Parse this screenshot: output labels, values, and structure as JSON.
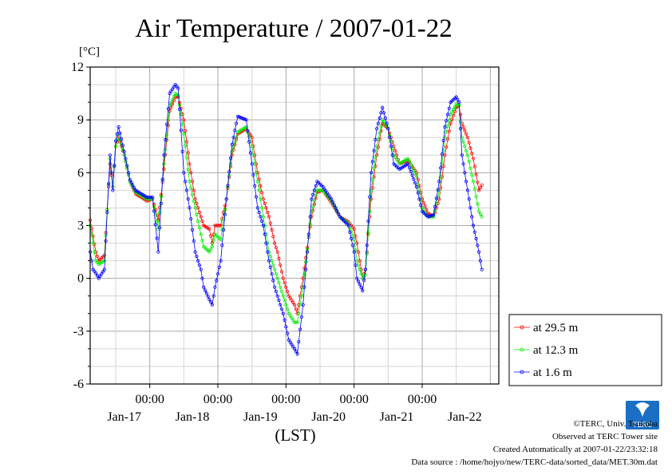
{
  "chart_data": {
    "type": "line",
    "title": "Air Temperature / 2007-01-22",
    "ylabel": "[°C]",
    "xlabel": "(LST)",
    "ylim": [
      -6,
      12
    ],
    "xlim": [
      0,
      144
    ],
    "y_ticks": [
      12,
      9,
      6,
      3,
      0,
      -3,
      -6
    ],
    "x_time_ticks": [
      {
        "x": 21,
        "label": "00:00"
      },
      {
        "x": 45,
        "label": "00:00"
      },
      {
        "x": 69,
        "label": "00:00"
      },
      {
        "x": 93,
        "label": "00:00"
      },
      {
        "x": 117,
        "label": "00:00"
      }
    ],
    "x_date_ticks": [
      {
        "x": 12,
        "label": "Jan-17"
      },
      {
        "x": 36,
        "label": "Jan-18"
      },
      {
        "x": 60,
        "label": "Jan-19"
      },
      {
        "x": 84,
        "label": "Jan-20"
      },
      {
        "x": 108,
        "label": "Jan-21"
      },
      {
        "x": 132,
        "label": "Jan-22"
      }
    ],
    "grid": true,
    "legend_position": "right-bottom",
    "series": [
      {
        "name": "at 29.5 m",
        "color": "#ff0000",
        "points": [
          [
            0,
            3.3
          ],
          [
            2,
            1.5
          ],
          [
            3,
            1.0
          ],
          [
            5,
            1.3
          ],
          [
            7,
            6.5
          ],
          [
            8,
            5.2
          ],
          [
            9,
            7.5
          ],
          [
            10,
            8.0
          ],
          [
            12,
            7.0
          ],
          [
            14,
            5.5
          ],
          [
            16,
            4.8
          ],
          [
            20,
            4.4
          ],
          [
            22,
            4.5
          ],
          [
            24,
            3.3
          ],
          [
            26,
            6.2
          ],
          [
            28,
            9.5
          ],
          [
            30,
            10.3
          ],
          [
            31,
            10.3
          ],
          [
            33,
            9.0
          ],
          [
            35,
            6.5
          ],
          [
            37,
            4.5
          ],
          [
            39,
            3.5
          ],
          [
            40,
            3.0
          ],
          [
            42,
            2.8
          ],
          [
            43,
            2.0
          ],
          [
            44,
            3.0
          ],
          [
            46,
            3.0
          ],
          [
            48,
            4.5
          ],
          [
            50,
            7.0
          ],
          [
            52,
            8.2
          ],
          [
            55,
            8.5
          ],
          [
            57,
            8.0
          ],
          [
            59,
            6.0
          ],
          [
            61,
            4.5
          ],
          [
            63,
            3.5
          ],
          [
            65,
            2.0
          ],
          [
            66,
            1.5
          ],
          [
            68,
            0.0
          ],
          [
            70,
            -1.0
          ],
          [
            72,
            -1.5
          ],
          [
            73,
            -2.0
          ],
          [
            75,
            0.0
          ],
          [
            78,
            3.5
          ],
          [
            80,
            4.9
          ],
          [
            82,
            5.0
          ],
          [
            85,
            4.3
          ],
          [
            88,
            3.5
          ],
          [
            91,
            3.2
          ],
          [
            93,
            2.8
          ],
          [
            94,
            2.0
          ],
          [
            96,
            0.0
          ],
          [
            97,
            0.5
          ],
          [
            99,
            4.5
          ],
          [
            101,
            7.0
          ],
          [
            103,
            8.8
          ],
          [
            105,
            8.5
          ],
          [
            107,
            7.5
          ],
          [
            109,
            6.5
          ],
          [
            112,
            6.7
          ],
          [
            115,
            6.0
          ],
          [
            117,
            4.5
          ],
          [
            119,
            3.7
          ],
          [
            121,
            3.5
          ],
          [
            123,
            4.5
          ],
          [
            125,
            7.0
          ],
          [
            127,
            8.8
          ],
          [
            129,
            9.7
          ],
          [
            130,
            9.8
          ],
          [
            131,
            8.8
          ],
          [
            133,
            8.0
          ],
          [
            135,
            6.8
          ],
          [
            137,
            5.0
          ],
          [
            138,
            5.3
          ]
        ]
      },
      {
        "name": "at 12.3 m",
        "color": "#00ee00",
        "points": [
          [
            0,
            3.0
          ],
          [
            2,
            1.0
          ],
          [
            3,
            0.8
          ],
          [
            5,
            1.0
          ],
          [
            7,
            6.8
          ],
          [
            8,
            5.2
          ],
          [
            9,
            7.5
          ],
          [
            10,
            8.2
          ],
          [
            12,
            7.0
          ],
          [
            14,
            5.5
          ],
          [
            16,
            4.9
          ],
          [
            20,
            4.5
          ],
          [
            22,
            4.5
          ],
          [
            24,
            2.8
          ],
          [
            26,
            6.5
          ],
          [
            28,
            9.8
          ],
          [
            30,
            10.5
          ],
          [
            31,
            10.4
          ],
          [
            33,
            8.2
          ],
          [
            35,
            5.5
          ],
          [
            37,
            4.0
          ],
          [
            39,
            2.5
          ],
          [
            40,
            1.8
          ],
          [
            42,
            1.5
          ],
          [
            43,
            1.8
          ],
          [
            44,
            2.5
          ],
          [
            46,
            2.2
          ],
          [
            48,
            4.5
          ],
          [
            50,
            7.2
          ],
          [
            52,
            8.3
          ],
          [
            55,
            8.6
          ],
          [
            57,
            7.5
          ],
          [
            59,
            5.5
          ],
          [
            61,
            3.5
          ],
          [
            63,
            1.5
          ],
          [
            65,
            0.5
          ],
          [
            66,
            0.0
          ],
          [
            68,
            -1.0
          ],
          [
            70,
            -2.0
          ],
          [
            72,
            -2.5
          ],
          [
            73,
            -2.5
          ],
          [
            75,
            -0.5
          ],
          [
            78,
            3.8
          ],
          [
            80,
            5.0
          ],
          [
            82,
            5.0
          ],
          [
            85,
            4.4
          ],
          [
            88,
            3.5
          ],
          [
            91,
            3.1
          ],
          [
            93,
            2.2
          ],
          [
            94,
            1.0
          ],
          [
            96,
            0.0
          ],
          [
            97,
            0.2
          ],
          [
            99,
            5.0
          ],
          [
            101,
            7.5
          ],
          [
            103,
            9.0
          ],
          [
            105,
            8.5
          ],
          [
            107,
            7.0
          ],
          [
            109,
            6.5
          ],
          [
            112,
            6.8
          ],
          [
            115,
            5.8
          ],
          [
            117,
            4.0
          ],
          [
            119,
            3.5
          ],
          [
            121,
            3.5
          ],
          [
            123,
            5.0
          ],
          [
            125,
            8.0
          ],
          [
            127,
            9.3
          ],
          [
            129,
            9.9
          ],
          [
            130,
            9.8
          ],
          [
            131,
            8.0
          ],
          [
            133,
            7.0
          ],
          [
            135,
            5.5
          ],
          [
            137,
            3.8
          ],
          [
            138,
            3.5
          ]
        ]
      },
      {
        "name": "at 1.6 m",
        "color": "#0000ff",
        "points": [
          [
            0,
            1.5
          ],
          [
            1,
            0.5
          ],
          [
            2,
            0.3
          ],
          [
            3,
            0.0
          ],
          [
            5,
            0.5
          ],
          [
            7,
            7.0
          ],
          [
            8,
            5.0
          ],
          [
            9,
            7.8
          ],
          [
            10,
            8.6
          ],
          [
            12,
            7.2
          ],
          [
            14,
            5.6
          ],
          [
            16,
            5.0
          ],
          [
            20,
            4.6
          ],
          [
            22,
            4.6
          ],
          [
            24,
            1.5
          ],
          [
            26,
            7.0
          ],
          [
            28,
            10.5
          ],
          [
            30,
            11.0
          ],
          [
            31,
            10.8
          ],
          [
            33,
            6.0
          ],
          [
            35,
            4.0
          ],
          [
            37,
            1.5
          ],
          [
            39,
            0.5
          ],
          [
            40,
            -0.5
          ],
          [
            42,
            -1.2
          ],
          [
            43,
            -1.5
          ],
          [
            44,
            -0.5
          ],
          [
            46,
            1.0
          ],
          [
            48,
            4.5
          ],
          [
            50,
            7.6
          ],
          [
            52,
            9.2
          ],
          [
            55,
            9.0
          ],
          [
            57,
            6.5
          ],
          [
            59,
            4.0
          ],
          [
            61,
            3.0
          ],
          [
            63,
            1.0
          ],
          [
            65,
            -0.5
          ],
          [
            66,
            -1.0
          ],
          [
            68,
            -2.0
          ],
          [
            70,
            -3.5
          ],
          [
            72,
            -4.0
          ],
          [
            73,
            -4.3
          ],
          [
            75,
            -1.5
          ],
          [
            78,
            4.5
          ],
          [
            80,
            5.5
          ],
          [
            82,
            5.2
          ],
          [
            85,
            4.5
          ],
          [
            88,
            3.5
          ],
          [
            91,
            3.0
          ],
          [
            93,
            1.5
          ],
          [
            94,
            0.0
          ],
          [
            96,
            -0.7
          ],
          [
            97,
            0.5
          ],
          [
            99,
            6.0
          ],
          [
            101,
            8.5
          ],
          [
            103,
            9.7
          ],
          [
            105,
            8.5
          ],
          [
            107,
            6.5
          ],
          [
            109,
            6.2
          ],
          [
            112,
            6.5
          ],
          [
            115,
            5.2
          ],
          [
            117,
            3.8
          ],
          [
            119,
            3.5
          ],
          [
            121,
            3.6
          ],
          [
            123,
            5.5
          ],
          [
            125,
            8.6
          ],
          [
            127,
            10.0
          ],
          [
            129,
            10.3
          ],
          [
            130,
            10.0
          ],
          [
            131,
            7.0
          ],
          [
            133,
            5.0
          ],
          [
            135,
            3.0
          ],
          [
            137,
            1.5
          ],
          [
            138,
            0.5
          ]
        ]
      }
    ]
  },
  "footer": {
    "copyright": "©TERC, Univ. Tsukuba",
    "observed": "Observed at TERC Tower site",
    "created": "Created Automatically at 2007-01-22/23:32:18",
    "source": "Data source : /home/hojyo/new/TERC-data/sorted_data/MET.30m.dat",
    "logo_text": "TERC"
  }
}
